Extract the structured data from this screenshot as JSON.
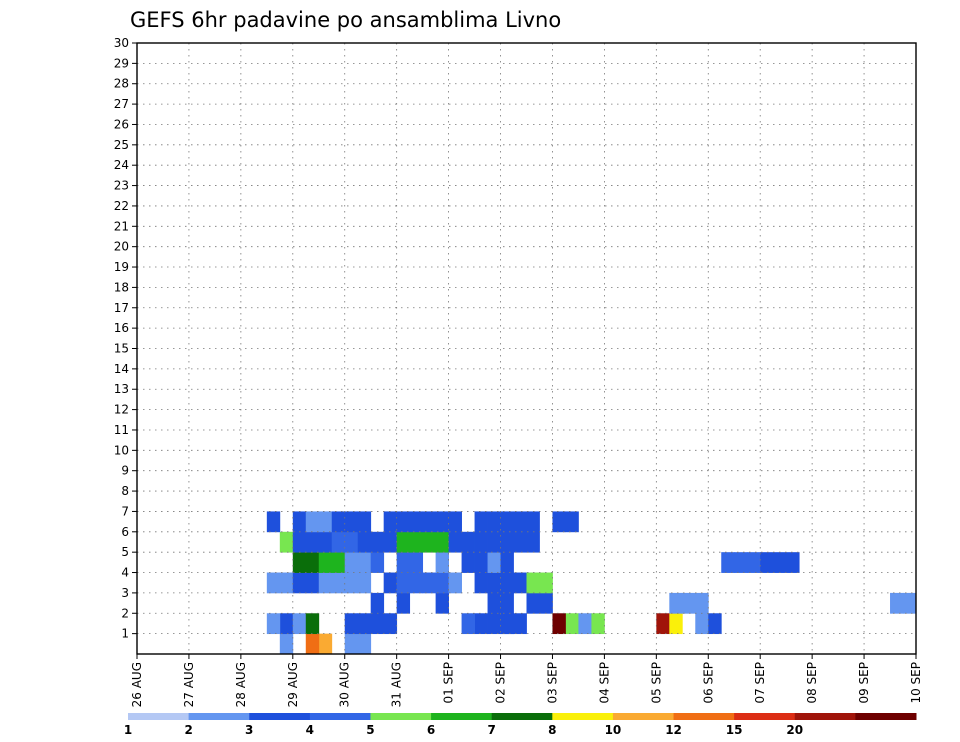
{
  "chart_data": {
    "type": "heatmap",
    "title": "GEFS 6hr padavine po ansamblima Livno",
    "x_ticks": [
      "26 AUG",
      "27 AUG",
      "28 AUG",
      "29 AUG",
      "30 AUG",
      "31 AUG",
      "01 SEP",
      "02 SEP",
      "03 SEP",
      "04 SEP",
      "05 SEP",
      "06 SEP",
      "07 SEP",
      "08 SEP",
      "09 SEP",
      "10 SEP"
    ],
    "y_ticks": [
      "1",
      "2",
      "3",
      "4",
      "5",
      "6",
      "7",
      "8",
      "9",
      "10",
      "11",
      "12",
      "13",
      "14",
      "15",
      "16",
      "17",
      "18",
      "19",
      "20",
      "21",
      "22",
      "23",
      "24",
      "25",
      "26",
      "27",
      "28",
      "29",
      "30"
    ],
    "x_range": [
      0,
      60
    ],
    "y_range": [
      0,
      30
    ],
    "grid": true,
    "legend": {
      "placement": "bottom",
      "labels": [
        "1",
        "2",
        "3",
        "4",
        "5",
        "6",
        "7",
        "8",
        "10",
        "12",
        "15",
        "20"
      ],
      "colors": [
        "#b4c8f4",
        "#6496f0",
        "#1e50dc",
        "#3266e6",
        "#78e650",
        "#1eb41e",
        "#0a6e0a",
        "#faf00a",
        "#faaa32",
        "#f06e14",
        "#dc2d14",
        "#a0140a",
        "#6e0000"
      ]
    },
    "cells": [
      [
        11,
        0,
        1
      ],
      [
        14,
        0,
        8
      ],
      [
        13,
        0,
        9
      ],
      [
        16,
        0,
        1
      ],
      [
        17,
        0,
        1
      ],
      [
        16,
        1,
        2
      ],
      [
        17,
        1,
        2
      ],
      [
        18,
        1,
        2
      ],
      [
        19,
        1,
        2
      ],
      [
        26,
        1,
        2
      ],
      [
        28,
        1,
        2
      ],
      [
        29,
        1,
        2
      ],
      [
        33,
        1,
        4
      ],
      [
        34,
        1,
        1
      ],
      [
        32,
        1,
        12
      ],
      [
        35,
        1,
        4
      ],
      [
        40,
        1,
        11
      ],
      [
        41,
        1,
        7
      ],
      [
        43,
        1,
        1
      ],
      [
        44,
        1,
        2
      ],
      [
        11,
        1,
        2
      ],
      [
        10,
        1,
        1
      ],
      [
        12,
        1,
        1
      ],
      [
        13,
        1,
        6
      ],
      [
        25,
        1,
        3
      ],
      [
        27,
        1,
        2
      ],
      [
        28,
        1,
        2
      ],
      [
        18,
        2,
        2
      ],
      [
        20,
        2,
        2
      ],
      [
        23,
        2,
        2
      ],
      [
        27,
        2,
        2
      ],
      [
        28,
        2,
        2
      ],
      [
        30,
        2,
        2
      ],
      [
        31,
        2,
        2
      ],
      [
        41,
        2,
        1
      ],
      [
        42,
        2,
        1
      ],
      [
        43,
        2,
        1
      ],
      [
        58,
        2,
        1
      ],
      [
        59,
        2,
        1
      ],
      [
        60,
        2,
        1
      ],
      [
        10,
        3,
        1
      ],
      [
        11,
        3,
        1
      ],
      [
        12,
        3,
        2
      ],
      [
        13,
        3,
        2
      ],
      [
        14,
        3,
        1
      ],
      [
        15,
        3,
        1
      ],
      [
        16,
        3,
        1
      ],
      [
        17,
        3,
        1
      ],
      [
        19,
        3,
        2
      ],
      [
        20,
        3,
        3
      ],
      [
        21,
        3,
        3
      ],
      [
        22,
        3,
        3
      ],
      [
        23,
        3,
        3
      ],
      [
        24,
        3,
        1
      ],
      [
        26,
        3,
        2
      ],
      [
        27,
        3,
        2
      ],
      [
        28,
        3,
        2
      ],
      [
        29,
        3,
        2
      ],
      [
        30,
        3,
        4
      ],
      [
        31,
        3,
        4
      ],
      [
        12,
        4,
        6
      ],
      [
        13,
        4,
        6
      ],
      [
        14,
        4,
        5
      ],
      [
        15,
        4,
        5
      ],
      [
        16,
        4,
        1
      ],
      [
        17,
        4,
        1
      ],
      [
        18,
        4,
        3
      ],
      [
        20,
        4,
        3
      ],
      [
        21,
        4,
        3
      ],
      [
        23,
        4,
        1
      ],
      [
        25,
        4,
        2
      ],
      [
        26,
        4,
        2
      ],
      [
        27,
        4,
        1
      ],
      [
        28,
        4,
        2
      ],
      [
        45,
        4,
        3
      ],
      [
        46,
        4,
        3
      ],
      [
        47,
        4,
        3
      ],
      [
        48,
        4,
        2
      ],
      [
        49,
        4,
        2
      ],
      [
        50,
        4,
        2
      ],
      [
        11,
        5,
        4
      ],
      [
        12,
        5,
        2
      ],
      [
        13,
        5,
        2
      ],
      [
        14,
        5,
        2
      ],
      [
        15,
        5,
        3
      ],
      [
        16,
        5,
        3
      ],
      [
        17,
        5,
        2
      ],
      [
        18,
        5,
        2
      ],
      [
        19,
        5,
        2
      ],
      [
        20,
        5,
        5
      ],
      [
        21,
        5,
        5
      ],
      [
        22,
        5,
        5
      ],
      [
        23,
        5,
        5
      ],
      [
        24,
        5,
        2
      ],
      [
        25,
        5,
        2
      ],
      [
        26,
        5,
        2
      ],
      [
        27,
        5,
        2
      ],
      [
        28,
        5,
        2
      ],
      [
        29,
        5,
        2
      ],
      [
        30,
        5,
        2
      ],
      [
        10,
        6,
        2
      ],
      [
        12,
        6,
        2
      ],
      [
        13,
        6,
        1
      ],
      [
        14,
        6,
        1
      ],
      [
        15,
        6,
        2
      ],
      [
        16,
        6,
        2
      ],
      [
        17,
        6,
        2
      ],
      [
        19,
        6,
        2
      ],
      [
        20,
        6,
        2
      ],
      [
        21,
        6,
        2
      ],
      [
        22,
        6,
        2
      ],
      [
        23,
        6,
        2
      ],
      [
        24,
        6,
        2
      ],
      [
        26,
        6,
        2
      ],
      [
        27,
        6,
        2
      ],
      [
        28,
        6,
        2
      ],
      [
        29,
        6,
        2
      ],
      [
        30,
        6,
        2
      ],
      [
        32,
        6,
        2
      ],
      [
        33,
        6,
        2
      ]
    ]
  }
}
